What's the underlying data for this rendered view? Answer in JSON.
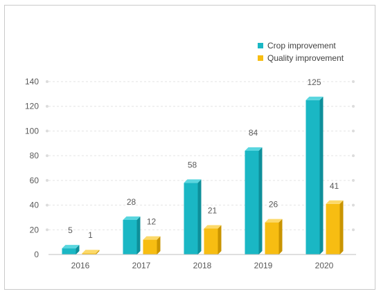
{
  "chart_data": {
    "type": "bar",
    "title": "",
    "xlabel": "",
    "ylabel": "",
    "categories": [
      "2016",
      "2017",
      "2018",
      "2019",
      "2020"
    ],
    "series": [
      {
        "name": "Crop improvement",
        "values": [
          5,
          28,
          58,
          84,
          125
        ],
        "color": "#1ab7c4",
        "side_color": "#0e8f9a",
        "top_color": "#5ad6df"
      },
      {
        "name": "Quality improvement",
        "values": [
          1,
          12,
          21,
          26,
          41
        ],
        "color": "#f7bd12",
        "side_color": "#c99400",
        "top_color": "#fcd96a"
      }
    ],
    "ylim": [
      0,
      140
    ],
    "yticks": [
      0,
      20,
      40,
      60,
      80,
      100,
      120,
      140
    ],
    "grid": true,
    "legend_position": "top-right",
    "style": "3d-bars"
  }
}
